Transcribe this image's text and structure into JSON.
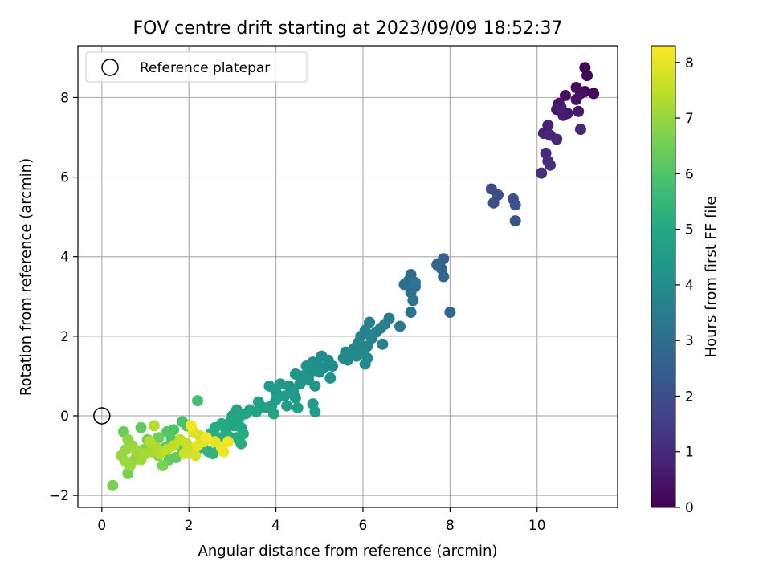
{
  "chart_data": {
    "type": "scatter",
    "title": "FOV centre drift starting at 2023/09/09 18:52:37",
    "xlabel": "Angular distance from reference (arcmin)",
    "ylabel": "Rotation from reference (arcmin)",
    "xlim": [
      -0.55,
      11.85
    ],
    "ylim": [
      -2.3,
      9.3
    ],
    "xticks": [
      0,
      2,
      4,
      6,
      8,
      10
    ],
    "yticks": [
      -2,
      0,
      2,
      4,
      6,
      8
    ],
    "grid": true,
    "legend": {
      "placement": "top-left",
      "entries": [
        "Reference platepar"
      ]
    },
    "reference_point": {
      "x": 0,
      "y": 0,
      "label": "Reference platepar",
      "marker": "open-circle"
    },
    "colorbar": {
      "label": "Hours from first FF file",
      "colormap": "viridis",
      "range": [
        0,
        8.3
      ],
      "ticks": [
        0,
        1,
        2,
        3,
        4,
        5,
        6,
        7,
        8
      ]
    },
    "color_encoding": "hours",
    "points": [
      {
        "x": 11.1,
        "y": 8.75,
        "hours": 0.05
      },
      {
        "x": 11.15,
        "y": 8.55,
        "hours": 0.1
      },
      {
        "x": 11.1,
        "y": 8.15,
        "hours": 0.15
      },
      {
        "x": 11.3,
        "y": 8.1,
        "hours": 0.2
      },
      {
        "x": 10.9,
        "y": 8.25,
        "hours": 0.25
      },
      {
        "x": 11.0,
        "y": 8.1,
        "hours": 0.3
      },
      {
        "x": 10.65,
        "y": 8.05,
        "hours": 0.35
      },
      {
        "x": 10.9,
        "y": 7.95,
        "hours": 0.4
      },
      {
        "x": 10.5,
        "y": 7.85,
        "hours": 0.45
      },
      {
        "x": 10.45,
        "y": 7.7,
        "hours": 0.5
      },
      {
        "x": 10.7,
        "y": 7.6,
        "hours": 0.55
      },
      {
        "x": 10.6,
        "y": 7.55,
        "hours": 0.6
      },
      {
        "x": 10.95,
        "y": 7.65,
        "hours": 0.65
      },
      {
        "x": 10.55,
        "y": 7.75,
        "hours": 0.7
      },
      {
        "x": 10.25,
        "y": 7.3,
        "hours": 0.75
      },
      {
        "x": 10.15,
        "y": 7.1,
        "hours": 0.8
      },
      {
        "x": 10.3,
        "y": 7.05,
        "hours": 0.85
      },
      {
        "x": 10.45,
        "y": 6.95,
        "hours": 0.9
      },
      {
        "x": 11.0,
        "y": 7.2,
        "hours": 0.95
      },
      {
        "x": 10.2,
        "y": 6.6,
        "hours": 1.0
      },
      {
        "x": 10.25,
        "y": 6.4,
        "hours": 1.05
      },
      {
        "x": 10.3,
        "y": 6.3,
        "hours": 1.1
      },
      {
        "x": 10.1,
        "y": 6.1,
        "hours": 1.15
      },
      {
        "x": 8.95,
        "y": 5.7,
        "hours": 1.9
      },
      {
        "x": 9.1,
        "y": 5.55,
        "hours": 1.95
      },
      {
        "x": 9.0,
        "y": 5.35,
        "hours": 2.0
      },
      {
        "x": 9.45,
        "y": 5.45,
        "hours": 2.05
      },
      {
        "x": 9.5,
        "y": 5.3,
        "hours": 2.1
      },
      {
        "x": 9.5,
        "y": 4.9,
        "hours": 2.15
      },
      {
        "x": 7.85,
        "y": 3.95,
        "hours": 2.6
      },
      {
        "x": 7.7,
        "y": 3.8,
        "hours": 2.65
      },
      {
        "x": 7.8,
        "y": 3.7,
        "hours": 2.7
      },
      {
        "x": 7.85,
        "y": 3.5,
        "hours": 2.75
      },
      {
        "x": 8.0,
        "y": 2.6,
        "hours": 2.8
      },
      {
        "x": 7.1,
        "y": 3.55,
        "hours": 2.9
      },
      {
        "x": 7.05,
        "y": 3.4,
        "hours": 2.95
      },
      {
        "x": 6.95,
        "y": 3.3,
        "hours": 3.0
      },
      {
        "x": 7.2,
        "y": 3.25,
        "hours": 3.05
      },
      {
        "x": 7.1,
        "y": 3.1,
        "hours": 3.1
      },
      {
        "x": 7.15,
        "y": 2.9,
        "hours": 3.15
      },
      {
        "x": 7.1,
        "y": 2.6,
        "hours": 3.2
      },
      {
        "x": 7.2,
        "y": 3.35,
        "hours": 3.25
      },
      {
        "x": 6.85,
        "y": 2.25,
        "hours": 3.4
      },
      {
        "x": 6.6,
        "y": 2.45,
        "hours": 3.45
      },
      {
        "x": 6.5,
        "y": 2.3,
        "hours": 3.5
      },
      {
        "x": 6.4,
        "y": 2.2,
        "hours": 3.55
      },
      {
        "x": 6.3,
        "y": 2.1,
        "hours": 3.6
      },
      {
        "x": 6.15,
        "y": 2.35,
        "hours": 3.6
      },
      {
        "x": 6.05,
        "y": 2.15,
        "hours": 3.65
      },
      {
        "x": 5.95,
        "y": 2.0,
        "hours": 3.7
      },
      {
        "x": 6.45,
        "y": 1.8,
        "hours": 3.7
      },
      {
        "x": 6.2,
        "y": 1.95,
        "hours": 3.7
      },
      {
        "x": 5.9,
        "y": 1.85,
        "hours": 3.75
      },
      {
        "x": 6.1,
        "y": 1.75,
        "hours": 3.75
      },
      {
        "x": 5.8,
        "y": 1.7,
        "hours": 3.8
      },
      {
        "x": 5.7,
        "y": 1.55,
        "hours": 3.8
      },
      {
        "x": 6.0,
        "y": 1.6,
        "hours": 3.85
      },
      {
        "x": 6.1,
        "y": 1.45,
        "hours": 3.85
      },
      {
        "x": 6.05,
        "y": 1.3,
        "hours": 3.9
      },
      {
        "x": 5.6,
        "y": 1.6,
        "hours": 3.9
      },
      {
        "x": 5.55,
        "y": 1.45,
        "hours": 3.95
      },
      {
        "x": 5.65,
        "y": 1.4,
        "hours": 3.95
      },
      {
        "x": 5.85,
        "y": 1.5,
        "hours": 3.95
      },
      {
        "x": 5.2,
        "y": 1.4,
        "hours": 4.0
      },
      {
        "x": 5.05,
        "y": 1.5,
        "hours": 4.0
      },
      {
        "x": 5.3,
        "y": 1.25,
        "hours": 4.05
      },
      {
        "x": 5.1,
        "y": 1.2,
        "hours": 4.05
      },
      {
        "x": 4.95,
        "y": 1.3,
        "hours": 4.1
      },
      {
        "x": 4.85,
        "y": 1.35,
        "hours": 4.1
      },
      {
        "x": 5.0,
        "y": 1.1,
        "hours": 4.15
      },
      {
        "x": 4.8,
        "y": 1.1,
        "hours": 4.15
      },
      {
        "x": 4.7,
        "y": 1.25,
        "hours": 4.2
      },
      {
        "x": 5.25,
        "y": 0.95,
        "hours": 4.2
      },
      {
        "x": 4.6,
        "y": 1.0,
        "hours": 4.25
      },
      {
        "x": 4.45,
        "y": 1.05,
        "hours": 4.25
      },
      {
        "x": 4.75,
        "y": 0.9,
        "hours": 4.3
      },
      {
        "x": 4.55,
        "y": 0.8,
        "hours": 4.3
      },
      {
        "x": 4.3,
        "y": 0.75,
        "hours": 4.35
      },
      {
        "x": 4.9,
        "y": 0.75,
        "hours": 4.35
      },
      {
        "x": 4.4,
        "y": 0.6,
        "hours": 4.4
      },
      {
        "x": 4.1,
        "y": 0.8,
        "hours": 4.4
      },
      {
        "x": 4.0,
        "y": 0.6,
        "hours": 4.45
      },
      {
        "x": 3.85,
        "y": 0.75,
        "hours": 4.45
      },
      {
        "x": 4.2,
        "y": 0.5,
        "hours": 4.5
      },
      {
        "x": 4.45,
        "y": 0.45,
        "hours": 4.5
      },
      {
        "x": 4.0,
        "y": 0.4,
        "hours": 4.55
      },
      {
        "x": 4.85,
        "y": 0.3,
        "hours": 4.55
      },
      {
        "x": 4.9,
        "y": 0.1,
        "hours": 4.6
      },
      {
        "x": 4.25,
        "y": 0.25,
        "hours": 4.6
      },
      {
        "x": 3.9,
        "y": 0.25,
        "hours": 4.65
      },
      {
        "x": 4.5,
        "y": 0.2,
        "hours": 4.65
      },
      {
        "x": 3.6,
        "y": 0.35,
        "hours": 4.7
      },
      {
        "x": 3.75,
        "y": 0.2,
        "hours": 4.7
      },
      {
        "x": 3.4,
        "y": 0.15,
        "hours": 4.75
      },
      {
        "x": 3.3,
        "y": 0.05,
        "hours": 4.75
      },
      {
        "x": 3.55,
        "y": 0.1,
        "hours": 4.8
      },
      {
        "x": 3.95,
        "y": 0.05,
        "hours": 4.8
      },
      {
        "x": 3.1,
        "y": 0.15,
        "hours": 4.85
      },
      {
        "x": 3.0,
        "y": 0.0,
        "hours": 4.85
      },
      {
        "x": 3.15,
        "y": -0.05,
        "hours": 4.9
      },
      {
        "x": 2.95,
        "y": -0.15,
        "hours": 4.9
      },
      {
        "x": 3.05,
        "y": -0.25,
        "hours": 4.95
      },
      {
        "x": 3.2,
        "y": -0.3,
        "hours": 4.95
      },
      {
        "x": 2.85,
        "y": -0.35,
        "hours": 5.0
      },
      {
        "x": 2.75,
        "y": -0.2,
        "hours": 5.0
      },
      {
        "x": 3.25,
        "y": -0.45,
        "hours": 5.05
      },
      {
        "x": 2.6,
        "y": -0.3,
        "hours": 5.05
      },
      {
        "x": 3.1,
        "y": -0.55,
        "hours": 5.1
      },
      {
        "x": 2.9,
        "y": -0.5,
        "hours": 5.1
      },
      {
        "x": 2.7,
        "y": -0.55,
        "hours": 5.15
      },
      {
        "x": 2.5,
        "y": -0.45,
        "hours": 5.15
      },
      {
        "x": 2.65,
        "y": -0.7,
        "hours": 5.2
      },
      {
        "x": 3.2,
        "y": -0.7,
        "hours": 5.2
      },
      {
        "x": 2.45,
        "y": -0.9,
        "hours": 5.3
      },
      {
        "x": 2.55,
        "y": -0.95,
        "hours": 5.35
      },
      {
        "x": 2.3,
        "y": -0.8,
        "hours": 5.4
      },
      {
        "x": 2.2,
        "y": 0.38,
        "hours": 5.8
      },
      {
        "x": 1.85,
        "y": -0.15,
        "hours": 5.9
      },
      {
        "x": 1.95,
        "y": -0.25,
        "hours": 5.9
      },
      {
        "x": 2.05,
        "y": -0.3,
        "hours": 6.0
      },
      {
        "x": 1.65,
        "y": -0.35,
        "hours": 6.0
      },
      {
        "x": 1.5,
        "y": -0.4,
        "hours": 6.05
      },
      {
        "x": 1.6,
        "y": -0.6,
        "hours": 6.1
      },
      {
        "x": 1.75,
        "y": -0.7,
        "hours": 6.15
      },
      {
        "x": 1.45,
        "y": -0.8,
        "hours": 6.2
      },
      {
        "x": 1.55,
        "y": -1.1,
        "hours": 6.25
      },
      {
        "x": 1.7,
        "y": -1.05,
        "hours": 6.3
      },
      {
        "x": 1.85,
        "y": -0.9,
        "hours": 6.35
      },
      {
        "x": 0.9,
        "y": -0.3,
        "hours": 6.3
      },
      {
        "x": 0.5,
        "y": -0.4,
        "hours": 6.4
      },
      {
        "x": 1.3,
        "y": -0.55,
        "hours": 6.45
      },
      {
        "x": 1.05,
        "y": -0.6,
        "hours": 6.5
      },
      {
        "x": 1.2,
        "y": -0.75,
        "hours": 6.55
      },
      {
        "x": 0.25,
        "y": -1.75,
        "hours": 6.6
      },
      {
        "x": 0.6,
        "y": -1.45,
        "hours": 6.6
      },
      {
        "x": 1.4,
        "y": -1.25,
        "hours": 6.65
      },
      {
        "x": 1.3,
        "y": -1.0,
        "hours": 6.7
      },
      {
        "x": 0.95,
        "y": -0.85,
        "hours": 6.75
      },
      {
        "x": 0.85,
        "y": -1.0,
        "hours": 6.8
      },
      {
        "x": 0.75,
        "y": -1.1,
        "hours": 6.85
      },
      {
        "x": 0.6,
        "y": -0.6,
        "hours": 6.9
      },
      {
        "x": 0.7,
        "y": -0.75,
        "hours": 6.95
      },
      {
        "x": 0.55,
        "y": -0.85,
        "hours": 7.0
      },
      {
        "x": 0.45,
        "y": -1.0,
        "hours": 7.0
      },
      {
        "x": 0.65,
        "y": -1.25,
        "hours": 7.05
      },
      {
        "x": 0.55,
        "y": -1.15,
        "hours": 7.05
      },
      {
        "x": 0.8,
        "y": -0.9,
        "hours": 7.1
      },
      {
        "x": 0.9,
        "y": -1.1,
        "hours": 7.1
      },
      {
        "x": 1.0,
        "y": -0.95,
        "hours": 7.15
      },
      {
        "x": 1.15,
        "y": -0.9,
        "hours": 7.2
      },
      {
        "x": 1.25,
        "y": -0.8,
        "hours": 7.25
      },
      {
        "x": 1.1,
        "y": -0.65,
        "hours": 7.3
      },
      {
        "x": 1.2,
        "y": -0.25,
        "hours": 7.35
      },
      {
        "x": 1.35,
        "y": -0.95,
        "hours": 7.4
      },
      {
        "x": 1.5,
        "y": -0.85,
        "hours": 7.45
      },
      {
        "x": 1.65,
        "y": -0.75,
        "hours": 7.5
      },
      {
        "x": 1.8,
        "y": -0.6,
        "hours": 7.55
      },
      {
        "x": 1.95,
        "y": -0.7,
        "hours": 7.6
      },
      {
        "x": 2.05,
        "y": -0.85,
        "hours": 7.65
      },
      {
        "x": 1.9,
        "y": -0.95,
        "hours": 7.7
      },
      {
        "x": 2.15,
        "y": -1.0,
        "hours": 7.75
      },
      {
        "x": 2.25,
        "y": -0.5,
        "hours": 7.8
      },
      {
        "x": 2.1,
        "y": -0.4,
        "hours": 7.85
      },
      {
        "x": 2.35,
        "y": -0.65,
        "hours": 7.9
      },
      {
        "x": 2.2,
        "y": -0.75,
        "hours": 7.95
      },
      {
        "x": 2.6,
        "y": -0.65,
        "hours": 8.0
      },
      {
        "x": 2.75,
        "y": -0.8,
        "hours": 8.05
      },
      {
        "x": 2.8,
        "y": -0.9,
        "hours": 8.1
      },
      {
        "x": 2.9,
        "y": -0.65,
        "hours": 8.1
      },
      {
        "x": 2.05,
        "y": -0.25,
        "hours": 8.2
      },
      {
        "x": 2.4,
        "y": -0.55,
        "hours": 8.2
      }
    ]
  }
}
